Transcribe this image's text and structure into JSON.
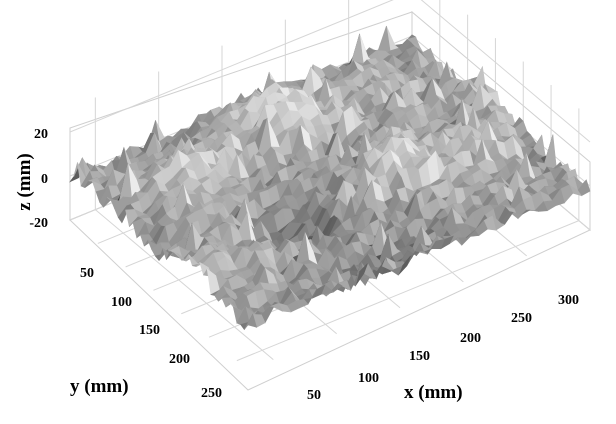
{
  "chart_data": {
    "type": "surface",
    "title": "",
    "xlabel": "x (mm)",
    "ylabel": "y (mm)",
    "zlabel": "z (mm)",
    "x_ticks": [
      "50",
      "100",
      "150",
      "200",
      "250",
      "300"
    ],
    "y_ticks": [
      "50",
      "100",
      "150",
      "200",
      "250"
    ],
    "z_ticks": [
      "20",
      "0",
      "-20"
    ],
    "xlim": [
      0,
      320
    ],
    "ylim": [
      0,
      270
    ],
    "zlim": [
      -20,
      20
    ],
    "colormap": "grayscale",
    "grid": true,
    "surface": "rough random terrain, heights roughly between -20 and 20 mm"
  }
}
